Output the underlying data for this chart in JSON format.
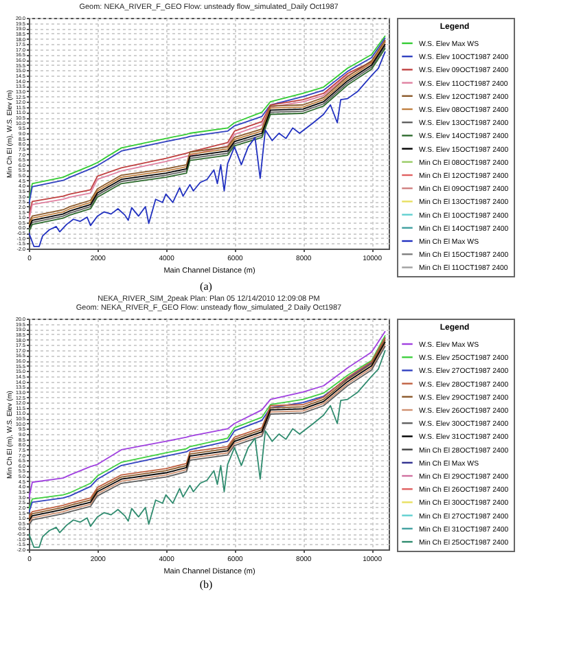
{
  "chart_data": [
    {
      "type": "line",
      "title": "Geom: NEKA_RIVER_F_GEO    Flow: unsteady flow_simulated_Daily Oct1987",
      "xlabel": "Main Channel Distance (m)",
      "ylabel": "Min Ch El (m), W.S. Elev (m)",
      "legend_title": "Legend",
      "legend": "right",
      "grid": true,
      "annotations": [
        "(a)"
      ],
      "xlim": [
        0,
        10500
      ],
      "xticks": [
        0,
        2000,
        4000,
        6000,
        8000,
        10000
      ],
      "ylim": [
        -2,
        20
      ],
      "yticks": [
        {
          "value": -2,
          "label": "-2.0"
        },
        {
          "value": -1.5,
          "label": "-1.5"
        },
        {
          "value": -1,
          "label": "-1.0"
        },
        {
          "value": -0.5,
          "label": "-0.5"
        },
        {
          "value": 0,
          "label": "0.0"
        },
        {
          "value": 0.5,
          "label": "0.5"
        },
        {
          "value": 1,
          "label": "1.0"
        },
        {
          "value": 1.5,
          "label": "1.5"
        },
        {
          "value": 2,
          "label": "2.0"
        },
        {
          "value": 2.5,
          "label": "2.5"
        },
        {
          "value": 3,
          "label": "3.0"
        },
        {
          "value": 3.5,
          "label": "3.5"
        },
        {
          "value": 4,
          "label": "4.0"
        },
        {
          "value": 4.5,
          "label": "4.5"
        },
        {
          "value": 5,
          "label": "5.0"
        },
        {
          "value": 5.5,
          "label": "5.5"
        },
        {
          "value": 6,
          "label": "6.0"
        },
        {
          "value": 6.5,
          "label": "6.5"
        },
        {
          "value": 7,
          "label": "7.0"
        },
        {
          "value": 7.5,
          "label": "7.5"
        },
        {
          "value": 8,
          "label": "8.0"
        },
        {
          "value": 8.5,
          "label": "8.5"
        },
        {
          "value": 9,
          "label": "9.0"
        },
        {
          "value": 9.5,
          "label": "9.5"
        },
        {
          "value": 10,
          "label": "10.0"
        },
        {
          "value": 10.5,
          "label": "10.5"
        },
        {
          "value": 11,
          "label": "11.0"
        },
        {
          "value": 11.5,
          "label": "11.5"
        },
        {
          "value": 12,
          "label": "12.0"
        },
        {
          "value": 12.5,
          "label": "12.5"
        },
        {
          "value": 13,
          "label": "13.0"
        },
        {
          "value": 13.5,
          "label": "13.5"
        },
        {
          "value": 14,
          "label": "14.0"
        },
        {
          "value": 14.5,
          "label": "14.5"
        },
        {
          "value": 15,
          "label": "15.0"
        },
        {
          "value": 15.5,
          "label": "15.5"
        },
        {
          "value": 16,
          "label": "16.0"
        },
        {
          "value": 16.5,
          "label": "16.5"
        },
        {
          "value": 17,
          "label": "17.0"
        },
        {
          "value": 17.5,
          "label": "17.5"
        },
        {
          "value": 18,
          "label": "18.0"
        },
        {
          "value": 18.5,
          "label": "18.5"
        },
        {
          "value": 19,
          "label": "19.0"
        },
        {
          "value": 19.5,
          "label": "19.5"
        },
        {
          "value": 20,
          "label": "20.0"
        }
      ],
      "x": [
        0,
        100,
        1000,
        1200,
        1800,
        2000,
        2700,
        4000,
        4600,
        4700,
        5800,
        6000,
        6800,
        7050,
        8000,
        8600,
        9300,
        10000,
        10400
      ],
      "series": [
        {
          "name": "W.S. Elev Max WS",
          "color": "#33cc33",
          "values": [
            2.5,
            4.2,
            4.8,
            5.1,
            5.9,
            6.2,
            7.6,
            8.5,
            8.9,
            9.0,
            9.5,
            10.0,
            11.0,
            12.0,
            12.8,
            13.4,
            15.2,
            16.5,
            18.3
          ]
        },
        {
          "name": "W.S. Elev 10OCT1987 2400",
          "color": "#3040c0",
          "values": [
            2.2,
            3.9,
            4.5,
            4.8,
            5.6,
            5.9,
            7.3,
            8.2,
            8.6,
            8.7,
            9.2,
            9.7,
            10.6,
            11.7,
            12.5,
            13.1,
            14.9,
            16.2,
            18.1
          ]
        },
        {
          "name": "W.S. Elev 09OCT1987 2400",
          "color": "#c04040",
          "values": [
            1.0,
            2.5,
            3.0,
            3.2,
            3.6,
            4.9,
            5.7,
            6.6,
            7.1,
            7.2,
            8.1,
            9.2,
            10.1,
            11.7,
            12.2,
            12.8,
            14.7,
            15.8,
            17.8
          ]
        },
        {
          "name": "W.S. Elev 11OCT1987 2400",
          "color": "#e080a0",
          "values": [
            0.7,
            2.2,
            2.7,
            2.9,
            3.3,
            4.6,
            5.4,
            6.3,
            6.8,
            6.9,
            7.8,
            8.9,
            9.8,
            11.5,
            12.0,
            12.6,
            14.5,
            15.7,
            17.7
          ]
        },
        {
          "name": "W.S. Elev 12OCT1987 2400",
          "color": "#8b5a2b",
          "values": [
            0.4,
            1.1,
            1.7,
            2.0,
            2.6,
            3.7,
            5.0,
            5.6,
            6.0,
            7.2,
            7.7,
            8.6,
            9.4,
            11.6,
            11.7,
            12.4,
            14.4,
            15.9,
            17.9
          ]
        },
        {
          "name": "W.S. Elev 08OCT1987 2400",
          "color": "#c08040",
          "values": [
            0.2,
            0.9,
            1.5,
            1.8,
            2.4,
            3.5,
            4.8,
            5.4,
            5.8,
            7.0,
            7.5,
            8.4,
            9.2,
            11.4,
            11.5,
            12.2,
            14.2,
            15.7,
            17.7
          ]
        },
        {
          "name": "W.S. Elev 13OCT1987 2400",
          "color": "#606060",
          "values": [
            -0.2,
            0.5,
            1.1,
            1.4,
            2.0,
            3.1,
            4.4,
            5.0,
            5.4,
            6.6,
            7.1,
            8.0,
            8.8,
            11.0,
            11.1,
            11.8,
            13.8,
            15.3,
            17.3
          ]
        },
        {
          "name": "W.S. Elev 14OCT1987 2400",
          "color": "#2e6b2e",
          "values": [
            -0.4,
            0.3,
            0.9,
            1.2,
            1.8,
            2.9,
            4.2,
            4.8,
            5.2,
            6.4,
            6.9,
            7.8,
            8.6,
            10.8,
            10.9,
            11.6,
            13.6,
            15.1,
            17.1
          ]
        },
        {
          "name": "W.S. Elev 15OCT1987 2400",
          "color": "#000000",
          "values": [
            0.0,
            0.7,
            1.3,
            1.6,
            2.2,
            3.3,
            4.6,
            5.2,
            5.6,
            6.8,
            7.3,
            8.2,
            9.0,
            11.2,
            11.3,
            12.0,
            14.0,
            15.5,
            17.5
          ]
        },
        {
          "name": "Min Ch El 08OCT1987 2400",
          "color": "#99cc66",
          "values": [
            null,
            null,
            null,
            null,
            null,
            null,
            null,
            null,
            null,
            null,
            null,
            null,
            null,
            null,
            null,
            null,
            null,
            null,
            null
          ]
        },
        {
          "name": "Min Ch El 12OCT1987 2400",
          "color": "#e06060",
          "values": [
            null,
            null,
            null,
            null,
            null,
            null,
            null,
            null,
            null,
            null,
            null,
            null,
            null,
            null,
            null,
            null,
            null,
            null,
            null
          ]
        },
        {
          "name": "Min Ch El 09OCT1987 2400",
          "color": "#d08080",
          "values": [
            null,
            null,
            null,
            null,
            null,
            null,
            null,
            null,
            null,
            null,
            null,
            null,
            null,
            null,
            null,
            null,
            null,
            null,
            null
          ]
        },
        {
          "name": "Min Ch El 13OCT1987 2400",
          "color": "#e8e060",
          "values": [
            null,
            null,
            null,
            null,
            null,
            null,
            null,
            null,
            null,
            null,
            null,
            null,
            null,
            null,
            null,
            null,
            null,
            null,
            null
          ]
        },
        {
          "name": "Min Ch El 10OCT1987 2400",
          "color": "#60d0d0",
          "values": [
            null,
            null,
            null,
            null,
            null,
            null,
            null,
            null,
            null,
            null,
            null,
            null,
            null,
            null,
            null,
            null,
            null,
            null,
            null
          ]
        },
        {
          "name": "Min Ch El 14OCT1987 2400",
          "color": "#40a0a0",
          "values": [
            null,
            null,
            null,
            null,
            null,
            null,
            null,
            null,
            null,
            null,
            null,
            null,
            null,
            null,
            null,
            null,
            null,
            null,
            null
          ]
        },
        {
          "name": "Min Ch El Max WS",
          "color": "#2030c0",
          "x": [
            0,
            150,
            300,
            400,
            600,
            800,
            900,
            1100,
            1300,
            1500,
            1700,
            1800,
            2000,
            2200,
            2400,
            2600,
            2800,
            2900,
            3000,
            3200,
            3400,
            3500,
            3700,
            3900,
            4000,
            4200,
            4400,
            4500,
            4700,
            4800,
            5000,
            5200,
            5400,
            5500,
            5600,
            5700,
            5800,
            6000,
            6200,
            6400,
            6600,
            6750,
            6900,
            7100,
            7300,
            7500,
            7700,
            7900,
            8300,
            8600,
            8800,
            9000,
            9100,
            9300,
            9600,
            10000,
            10200,
            10400
          ],
          "values": [
            -0.5,
            -1.8,
            -1.8,
            -0.8,
            -0.2,
            0.1,
            -0.4,
            0.3,
            0.8,
            0.6,
            1.0,
            0.2,
            1.1,
            1.5,
            1.3,
            1.8,
            1.2,
            0.7,
            1.9,
            1.1,
            2.0,
            0.4,
            2.7,
            2.4,
            3.2,
            2.4,
            3.8,
            3.0,
            4.1,
            3.5,
            4.3,
            4.6,
            5.5,
            4.2,
            6.0,
            3.5,
            6.1,
            7.7,
            6.0,
            7.7,
            8.6,
            4.7,
            9.3,
            8.3,
            9.0,
            8.5,
            9.5,
            9.0,
            10.0,
            10.8,
            11.7,
            10.0,
            12.2,
            12.3,
            13.0,
            14.5,
            15.2,
            16.8
          ]
        },
        {
          "name": "Min Ch El 15OCT1987 2400",
          "color": "#808080",
          "values": [
            null,
            null,
            null,
            null,
            null,
            null,
            null,
            null,
            null,
            null,
            null,
            null,
            null,
            null,
            null,
            null,
            null,
            null,
            null
          ]
        },
        {
          "name": "Min Ch El 11OCT1987 2400",
          "color": "#a0a0a0",
          "values": [
            null,
            null,
            null,
            null,
            null,
            null,
            null,
            null,
            null,
            null,
            null,
            null,
            null,
            null,
            null,
            null,
            null,
            null,
            null
          ]
        }
      ]
    },
    {
      "type": "line",
      "title": "NEKA_RIVER_SIM_2peak    Plan: Plan 05    12/14/2010  12:09:08 PM",
      "subtitle": "Geom: NEKA_RIVER_F_GEO    Flow: unsteady flow_simulated_2 Daily Oct1987",
      "xlabel": "Main Channel Distance (m)",
      "ylabel": "Min Ch El (m), W.S. Elev (m)",
      "legend_title": "Legend",
      "legend": "right",
      "grid": true,
      "annotations": [
        "(b)"
      ],
      "xlim": [
        0,
        10500
      ],
      "xticks": [
        0,
        2000,
        4000,
        6000,
        8000,
        10000
      ],
      "ylim": [
        -2,
        20
      ],
      "yticks": [
        {
          "value": -2,
          "label": "-2.0"
        },
        {
          "value": -1.5,
          "label": "-1.5"
        },
        {
          "value": -1,
          "label": "-1.0"
        },
        {
          "value": -0.5,
          "label": "-0.5"
        },
        {
          "value": 0,
          "label": "0.0"
        },
        {
          "value": 0.5,
          "label": "0.5"
        },
        {
          "value": 1,
          "label": "1.0"
        },
        {
          "value": 1.5,
          "label": "1.5"
        },
        {
          "value": 2,
          "label": "2.0"
        },
        {
          "value": 2.5,
          "label": "2.5"
        },
        {
          "value": 3,
          "label": "3.0"
        },
        {
          "value": 3.5,
          "label": "3.5"
        },
        {
          "value": 4,
          "label": "4.0"
        },
        {
          "value": 4.5,
          "label": "4.5"
        },
        {
          "value": 5,
          "label": "5.0"
        },
        {
          "value": 5.5,
          "label": "5.5"
        },
        {
          "value": 6,
          "label": "6.0"
        },
        {
          "value": 6.5,
          "label": "6.5"
        },
        {
          "value": 7,
          "label": "7.0"
        },
        {
          "value": 7.5,
          "label": "7.5"
        },
        {
          "value": 8,
          "label": "8.0"
        },
        {
          "value": 8.5,
          "label": "8.5"
        },
        {
          "value": 9,
          "label": "9.0"
        },
        {
          "value": 9.5,
          "label": "9.5"
        },
        {
          "value": 10,
          "label": "10.0"
        },
        {
          "value": 10.5,
          "label": "10.5"
        },
        {
          "value": 11,
          "label": "11.0"
        },
        {
          "value": 11.5,
          "label": "11.5"
        },
        {
          "value": 12,
          "label": "12.0"
        },
        {
          "value": 12.5,
          "label": "12.5"
        },
        {
          "value": 13,
          "label": "13.0"
        },
        {
          "value": 13.5,
          "label": "13.5"
        },
        {
          "value": 14,
          "label": "14.0"
        },
        {
          "value": 14.5,
          "label": "14.5"
        },
        {
          "value": 15,
          "label": "15.0"
        },
        {
          "value": 15.5,
          "label": "15.5"
        },
        {
          "value": 16,
          "label": "16.0"
        },
        {
          "value": 16.5,
          "label": "16.5"
        },
        {
          "value": 17,
          "label": "17.0"
        },
        {
          "value": 17.5,
          "label": "17.5"
        },
        {
          "value": 18,
          "label": "18.0"
        },
        {
          "value": 18.5,
          "label": "18.5"
        },
        {
          "value": 19,
          "label": "19.0"
        },
        {
          "value": 19.5,
          "label": "19.5"
        },
        {
          "value": 20,
          "label": "20.0"
        }
      ],
      "x": [
        0,
        100,
        1000,
        1200,
        1800,
        2000,
        2700,
        4000,
        4600,
        4700,
        5800,
        6000,
        6800,
        7050,
        8000,
        8600,
        9300,
        10000,
        10400
      ],
      "series": [
        {
          "name": "W.S. Elev Max WS",
          "color": "#a040e0",
          "values": [
            2.8,
            4.4,
            4.8,
            5.1,
            5.9,
            6.1,
            7.5,
            8.3,
            8.7,
            8.8,
            9.5,
            10.0,
            11.3,
            12.3,
            13.0,
            13.6,
            15.3,
            16.8,
            18.8
          ]
        },
        {
          "name": "W.S. Elev 25OCT1987 2400",
          "color": "#40d040",
          "values": [
            1.8,
            2.8,
            3.2,
            3.4,
            4.3,
            5.0,
            6.3,
            7.2,
            7.6,
            7.8,
            8.6,
            9.6,
            10.6,
            11.8,
            12.3,
            12.9,
            14.6,
            16.0,
            18.4
          ]
        },
        {
          "name": "W.S. Elev 27OCT1987 2400",
          "color": "#3040c0",
          "values": [
            1.5,
            2.5,
            2.9,
            3.1,
            4.0,
            4.7,
            6.0,
            6.9,
            7.3,
            7.5,
            8.3,
            9.3,
            10.3,
            11.5,
            12.0,
            12.6,
            14.3,
            15.8,
            18.2
          ]
        },
        {
          "name": "W.S. Elev 28OCT1987 2400",
          "color": "#c06040",
          "values": [
            1.1,
            1.6,
            2.2,
            2.4,
            2.9,
            3.9,
            5.1,
            5.7,
            6.2,
            7.3,
            7.8,
            8.7,
            9.6,
            11.7,
            11.8,
            12.5,
            14.4,
            15.9,
            18.2
          ]
        },
        {
          "name": "W.S. Elev 29OCT1987 2400",
          "color": "#8b5a2b",
          "values": [
            0.9,
            1.4,
            2.0,
            2.2,
            2.7,
            3.7,
            4.9,
            5.5,
            6.0,
            7.1,
            7.6,
            8.5,
            9.4,
            11.5,
            11.6,
            12.3,
            14.2,
            15.7,
            18.0
          ]
        },
        {
          "name": "W.S. Elev 26OCT1987 2400",
          "color": "#d09070",
          "values": [
            0.5,
            1.0,
            1.6,
            1.8,
            2.3,
            3.3,
            4.5,
            5.1,
            5.6,
            6.7,
            7.2,
            8.1,
            9.0,
            11.1,
            11.2,
            11.9,
            13.8,
            15.3,
            17.6
          ]
        },
        {
          "name": "W.S. Elev 30OCT1987 2400",
          "color": "#606060",
          "values": [
            0.3,
            0.8,
            1.4,
            1.6,
            2.1,
            3.1,
            4.3,
            4.9,
            5.4,
            6.5,
            7.0,
            7.9,
            8.8,
            10.9,
            11.0,
            11.7,
            13.6,
            15.1,
            17.4
          ]
        },
        {
          "name": "W.S. Elev 31OCT1987 2400",
          "color": "#000000",
          "values": [
            0.7,
            1.2,
            1.8,
            2.0,
            2.5,
            3.5,
            4.7,
            5.3,
            5.8,
            6.9,
            7.4,
            8.3,
            9.2,
            11.3,
            11.4,
            12.1,
            14.0,
            15.5,
            17.8
          ]
        },
        {
          "name": "Min Ch El 28OCT1987 2400",
          "color": "#404040",
          "values": [
            null,
            null,
            null,
            null,
            null,
            null,
            null,
            null,
            null,
            null,
            null,
            null,
            null,
            null,
            null,
            null,
            null,
            null,
            null
          ]
        },
        {
          "name": "Min Ch El Max WS",
          "color": "#303090",
          "values": [
            null,
            null,
            null,
            null,
            null,
            null,
            null,
            null,
            null,
            null,
            null,
            null,
            null,
            null,
            null,
            null,
            null,
            null,
            null
          ]
        },
        {
          "name": "Min Ch El 29OCT1987 2400",
          "color": "#d070a0",
          "values": [
            null,
            null,
            null,
            null,
            null,
            null,
            null,
            null,
            null,
            null,
            null,
            null,
            null,
            null,
            null,
            null,
            null,
            null,
            null
          ]
        },
        {
          "name": "Min Ch El 26OCT1987 2400",
          "color": "#e06060",
          "values": [
            null,
            null,
            null,
            null,
            null,
            null,
            null,
            null,
            null,
            null,
            null,
            null,
            null,
            null,
            null,
            null,
            null,
            null,
            null
          ]
        },
        {
          "name": "Min Ch El 30OCT1987 2400",
          "color": "#e8e060",
          "values": [
            null,
            null,
            null,
            null,
            null,
            null,
            null,
            null,
            null,
            null,
            null,
            null,
            null,
            null,
            null,
            null,
            null,
            null,
            null
          ]
        },
        {
          "name": "Min Ch El 27OCT1987 2400",
          "color": "#60d0d0",
          "values": [
            null,
            null,
            null,
            null,
            null,
            null,
            null,
            null,
            null,
            null,
            null,
            null,
            null,
            null,
            null,
            null,
            null,
            null,
            null
          ]
        },
        {
          "name": "Min Ch El 31OCT1987 2400",
          "color": "#40a0a0",
          "values": [
            null,
            null,
            null,
            null,
            null,
            null,
            null,
            null,
            null,
            null,
            null,
            null,
            null,
            null,
            null,
            null,
            null,
            null,
            null
          ]
        },
        {
          "name": "Min Ch El 25OCT1987 2400",
          "color": "#2e8b6e",
          "x": [
            0,
            150,
            300,
            400,
            600,
            800,
            900,
            1100,
            1300,
            1500,
            1700,
            1800,
            2000,
            2200,
            2400,
            2600,
            2800,
            2900,
            3000,
            3200,
            3400,
            3500,
            3700,
            3900,
            4000,
            4200,
            4400,
            4500,
            4700,
            4800,
            5000,
            5200,
            5400,
            5500,
            5600,
            5700,
            5800,
            6000,
            6200,
            6400,
            6600,
            6750,
            6900,
            7100,
            7300,
            7500,
            7700,
            7900,
            8300,
            8600,
            8800,
            9000,
            9100,
            9300,
            9600,
            10000,
            10200,
            10400
          ],
          "values": [
            -0.5,
            -1.8,
            -1.8,
            -0.8,
            -0.2,
            0.1,
            -0.4,
            0.3,
            0.8,
            0.6,
            1.0,
            0.2,
            1.1,
            1.5,
            1.3,
            1.8,
            1.2,
            0.7,
            1.9,
            1.1,
            2.0,
            0.4,
            2.7,
            2.4,
            3.2,
            2.4,
            3.8,
            3.0,
            4.1,
            3.5,
            4.3,
            4.6,
            5.5,
            4.2,
            6.0,
            3.5,
            6.1,
            7.7,
            6.0,
            7.7,
            8.6,
            4.7,
            9.3,
            8.3,
            9.0,
            8.5,
            9.5,
            9.0,
            10.0,
            10.8,
            11.7,
            10.0,
            12.2,
            12.3,
            13.0,
            14.5,
            15.2,
            17.0
          ]
        }
      ]
    }
  ]
}
